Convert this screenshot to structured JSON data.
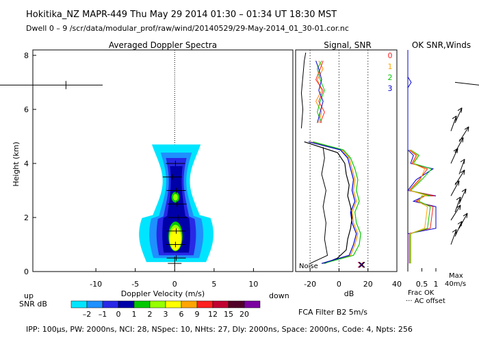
{
  "header": {
    "line1": "Hokitika_NZ  MAPR-449  Thu May 29 2014 01:30 – 01:34 UT 18:30 MST",
    "line2": "Dwell  0 – 9   /scr/data/modular_prof/raw/wind/20140529/29-May-2014_01_30-01.cor.nc"
  },
  "footer": {
    "params": "IPP: 100μs,  PW: 2000ns,  NCI: 28,  NSpec: 10, NHts: 27,  Dly: 2000ns,  Space: 2000ns,  Code: 4,  Npts: 256"
  },
  "colorbar": {
    "label": "SNR dB",
    "ticks": [
      "–2",
      "–1",
      "0",
      "1",
      "2",
      "3",
      "6",
      "9",
      "12",
      "15",
      "20"
    ],
    "colors": [
      "#00e5ff",
      "#1e90ff",
      "#2828e6",
      "#0000a8",
      "#00c800",
      "#96ff00",
      "#ffff00",
      "#ffa500",
      "#ff2020",
      "#c00030",
      "#500028",
      "#7a00a0"
    ]
  },
  "chart_data": [
    {
      "type": "heatmap",
      "title": "Averaged Doppler Spectra",
      "xlabel": "Doppler Velocity (m/s)",
      "ylabel": "Height (km)",
      "xlim": [
        -18,
        15
      ],
      "ylim": [
        0,
        8.2
      ],
      "x_ticks": [
        -10,
        -5,
        0,
        5,
        10
      ],
      "y_ticks": [
        0,
        2,
        4,
        6,
        8
      ],
      "up_label": "up",
      "down_label": "down",
      "spectra_peaks": [
        {
          "h": 0.5,
          "v": 0.2
        },
        {
          "h": 1.0,
          "v": 0.1
        },
        {
          "h": 1.5,
          "v": 0.2
        },
        {
          "h": 2.0,
          "v": 0.4
        },
        {
          "h": 2.5,
          "v": 0.3
        },
        {
          "h": 3.0,
          "v": 0.2
        },
        {
          "h": 3.5,
          "v": -0.3
        },
        {
          "h": 4.0,
          "v": 0.1
        }
      ],
      "noise_marker": {
        "h": 0.3,
        "v": 0.0
      },
      "outlier_marker": {
        "h": 6.9,
        "v": -13.8
      }
    },
    {
      "type": "line",
      "title": "Signal, SNR",
      "xlabel": "dB",
      "xlim": [
        -30,
        40
      ],
      "x_ticks": [
        -20,
        0,
        20,
        40
      ],
      "ylim": [
        0,
        8.2
      ],
      "noise_label": "Noise",
      "series": [
        {
          "name": "0",
          "color": "#000000",
          "points": [
            [
              -10,
              0.3
            ],
            [
              -1,
              0.5
            ],
            [
              5,
              0.8
            ],
            [
              6,
              1.2
            ],
            [
              8,
              1.6
            ],
            [
              9,
              2.0
            ],
            [
              8,
              2.4
            ],
            [
              6,
              2.8
            ],
            [
              7,
              3.2
            ],
            [
              5,
              3.6
            ],
            [
              4,
              4.0
            ],
            [
              -1,
              4.4
            ],
            [
              -24,
              4.8
            ]
          ]
        },
        {
          "name": "1",
          "color": "#ff8c00",
          "points": [
            [
              -12,
              0.3
            ],
            [
              8,
              0.6
            ],
            [
              11,
              1.0
            ],
            [
              13,
              1.4
            ],
            [
              10,
              1.8
            ],
            [
              9,
              2.2
            ],
            [
              12,
              2.6
            ],
            [
              10,
              3.0
            ],
            [
              11,
              3.4
            ],
            [
              9,
              3.8
            ],
            [
              7,
              4.2
            ],
            [
              2,
              4.5
            ],
            [
              -20,
              4.8
            ]
          ]
        },
        {
          "name": "2",
          "color": "#00c800",
          "points": [
            [
              -11,
              0.3
            ],
            [
              10,
              0.6
            ],
            [
              14,
              1.0
            ],
            [
              15,
              1.4
            ],
            [
              12,
              1.8
            ],
            [
              11,
              2.2
            ],
            [
              14,
              2.6
            ],
            [
              12,
              3.0
            ],
            [
              13,
              3.4
            ],
            [
              11,
              3.8
            ],
            [
              8,
              4.2
            ],
            [
              3,
              4.5
            ],
            [
              -18,
              4.8
            ]
          ]
        },
        {
          "name": "3",
          "color": "#0000cc",
          "points": [
            [
              -12,
              0.3
            ],
            [
              7,
              0.6
            ],
            [
              10,
              1.0
            ],
            [
              12,
              1.4
            ],
            [
              9,
              1.8
            ],
            [
              8,
              2.2
            ],
            [
              11,
              2.6
            ],
            [
              9,
              3.0
            ],
            [
              10,
              3.4
            ],
            [
              8,
              3.8
            ],
            [
              6,
              4.2
            ],
            [
              1,
              4.5
            ],
            [
              -21,
              4.8
            ]
          ]
        }
      ],
      "noise_line": [
        [
          -20,
          0.3
        ],
        [
          -8,
          0.6
        ],
        [
          -10,
          1.2
        ],
        [
          -9,
          1.8
        ],
        [
          -11,
          2.4
        ],
        [
          -9,
          3.0
        ],
        [
          -12,
          3.6
        ],
        [
          -10,
          4.2
        ],
        [
          -11,
          4.6
        ]
      ],
      "upper_lines": [
        {
          "color": "#ff8c00",
          "points": [
            [
              -14,
              5.5
            ],
            [
              -12,
              5.9
            ],
            [
              -16,
              6.3
            ],
            [
              -12,
              6.7
            ],
            [
              -15,
              7.1
            ],
            [
              -11,
              7.5
            ],
            [
              -14,
              7.8
            ]
          ]
        },
        {
          "color": "#00c800",
          "points": [
            [
              -12,
              5.5
            ],
            [
              -15,
              5.9
            ],
            [
              -13,
              6.3
            ],
            [
              -10,
              6.7
            ],
            [
              -13,
              7.1
            ],
            [
              -15,
              7.5
            ],
            [
              -12,
              7.8
            ]
          ]
        },
        {
          "color": "#ff2020",
          "points": [
            [
              -13,
              5.5
            ],
            [
              -10,
              5.9
            ],
            [
              -14,
              6.3
            ],
            [
              -11,
              6.7
            ],
            [
              -16,
              7.1
            ],
            [
              -13,
              7.5
            ],
            [
              -11,
              7.8
            ]
          ]
        },
        {
          "color": "#0000cc",
          "points": [
            [
              -15,
              5.5
            ],
            [
              -13,
              5.9
            ],
            [
              -11,
              6.3
            ],
            [
              -14,
              6.7
            ],
            [
              -12,
              7.1
            ],
            [
              -14,
              7.5
            ],
            [
              -16,
              7.8
            ]
          ]
        },
        {
          "color": "#000000",
          "points": [
            [
              -26,
              5.3
            ],
            [
              -25,
              6.0
            ],
            [
              -26,
              6.6
            ],
            [
              -25,
              7.2
            ],
            [
              -24,
              7.8
            ],
            [
              -23,
              8.1
            ]
          ]
        }
      ],
      "noise_markers_at": [
        [
          15,
          0.25
        ]
      ]
    },
    {
      "type": "line",
      "title": "OK SNR,Winds",
      "xlim": [
        0,
        1
      ],
      "x_ticks": [
        0.5,
        1
      ],
      "x_tick_labels": [
        "0.5",
        "1"
      ],
      "frac_label": "Frac OK",
      "ac_label": "··· AC offset",
      "max_label": "Max",
      "max_value": "40m/s",
      "series_labels": [
        {
          "name": "0",
          "color": "#ff2020"
        },
        {
          "name": "1",
          "color": "#ffa500"
        },
        {
          "name": "2",
          "color": "#00c800"
        },
        {
          "name": "3",
          "color": "#0000cc"
        }
      ],
      "frac_series": [
        {
          "color": "#0000cc",
          "points": [
            [
              0,
              0.3
            ],
            [
              0,
              1.4
            ],
            [
              1,
              1.6
            ],
            [
              1,
              2.4
            ],
            [
              0.2,
              2.6
            ],
            [
              0.6,
              2.8
            ],
            [
              1,
              2.8
            ],
            [
              0,
              3.0
            ],
            [
              0.3,
              3.4
            ],
            [
              0.9,
              3.8
            ],
            [
              0.1,
              4.0
            ],
            [
              0.2,
              4.3
            ],
            [
              0,
              4.5
            ],
            [
              0,
              8.2
            ]
          ]
        },
        {
          "color": "#ff2020",
          "points": [
            [
              0.05,
              0.3
            ],
            [
              0.05,
              1.4
            ],
            [
              0.8,
              1.6
            ],
            [
              0.9,
              2.4
            ],
            [
              0.3,
              2.6
            ],
            [
              0.6,
              2.8
            ],
            [
              0.95,
              2.8
            ],
            [
              0.05,
              3.0
            ],
            [
              0.4,
              3.4
            ],
            [
              0.7,
              3.8
            ],
            [
              0.15,
              4.0
            ],
            [
              0.3,
              4.3
            ],
            [
              0.05,
              4.5
            ]
          ]
        },
        {
          "color": "#00c800",
          "points": [
            [
              0.1,
              0.3
            ],
            [
              0.1,
              1.4
            ],
            [
              0.7,
              1.6
            ],
            [
              0.8,
              2.4
            ],
            [
              0.4,
              2.6
            ],
            [
              0.5,
              2.8
            ],
            [
              0.8,
              2.8
            ],
            [
              0.1,
              3.0
            ],
            [
              0.5,
              3.4
            ],
            [
              0.85,
              3.8
            ],
            [
              0.2,
              4.0
            ],
            [
              0.4,
              4.3
            ],
            [
              0.1,
              4.5
            ]
          ]
        },
        {
          "color": "#ffa500",
          "points": [
            [
              0.08,
              0.3
            ],
            [
              0.08,
              1.4
            ],
            [
              0.6,
              1.6
            ],
            [
              0.7,
              2.4
            ],
            [
              0.35,
              2.6
            ],
            [
              0.55,
              2.8
            ],
            [
              0.7,
              2.8
            ],
            [
              0.08,
              3.0
            ],
            [
              0.45,
              3.4
            ],
            [
              0.6,
              3.8
            ],
            [
              0.18,
              4.0
            ],
            [
              0.35,
              4.3
            ],
            [
              0.08,
              4.5
            ]
          ]
        }
      ],
      "wind_barbs_heights": [
        1.0,
        1.3,
        1.6,
        1.9,
        2.2,
        2.5,
        2.8,
        3.2,
        3.6,
        4.0,
        4.4,
        4.8,
        5.2,
        5.5
      ]
    }
  ],
  "filter_label": "FCA Filter B2  5m/s"
}
